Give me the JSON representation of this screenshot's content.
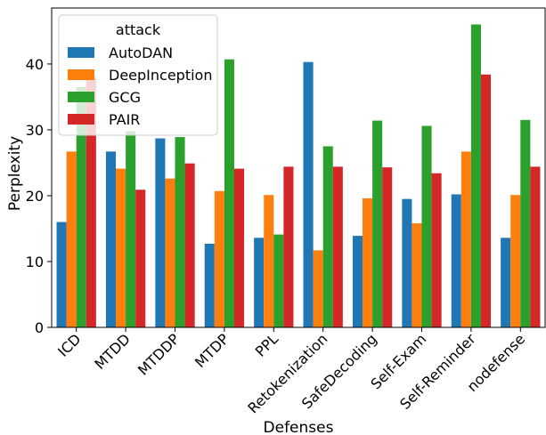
{
  "chart_data": {
    "type": "bar",
    "xlabel": "Defenses",
    "ylabel": "Perplexity",
    "ylim": [
      0,
      48.5
    ],
    "yticks": [
      0,
      10,
      20,
      30,
      40
    ],
    "grid": false,
    "legend": {
      "title": "attack",
      "placement": "top-left"
    },
    "categories": [
      "ICD",
      "MTDD",
      "MTDDP",
      "MTDP",
      "PPL",
      "Retokenization",
      "SafeDecoding",
      "Self-Exam",
      "Self-Reminder",
      "nodefense"
    ],
    "series": [
      {
        "name": "AutoDAN",
        "color": "#1f77b4",
        "values": [
          16.0,
          26.7,
          28.7,
          12.7,
          13.6,
          40.3,
          13.9,
          19.5,
          20.2,
          13.6
        ]
      },
      {
        "name": "DeepInception",
        "color": "#ff7f0e",
        "values": [
          26.7,
          24.1,
          22.6,
          20.7,
          20.1,
          11.7,
          19.6,
          15.8,
          26.7,
          20.1
        ]
      },
      {
        "name": "GCG",
        "color": "#2ca02c",
        "values": [
          36.5,
          29.8,
          28.9,
          40.7,
          14.1,
          27.5,
          31.4,
          30.6,
          46.0,
          31.5
        ]
      },
      {
        "name": "PAIR",
        "color": "#d62728",
        "values": [
          38.0,
          20.9,
          24.9,
          24.1,
          24.4,
          24.4,
          24.3,
          23.4,
          38.4,
          24.4
        ]
      }
    ]
  }
}
